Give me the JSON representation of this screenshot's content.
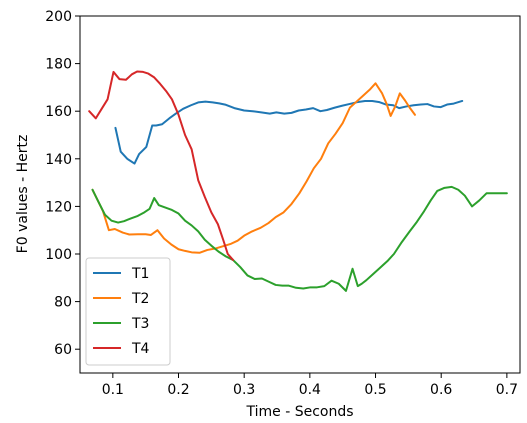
{
  "chart_data": {
    "type": "line",
    "title": "",
    "xlabel": "Time - Seconds",
    "ylabel": "F0 values - Hertz",
    "xlim": [
      0.05,
      0.72
    ],
    "ylim": [
      50,
      200
    ],
    "xticks": [
      0.1,
      0.2,
      0.3,
      0.4,
      0.5,
      0.6,
      0.7
    ],
    "yticks": [
      60,
      80,
      100,
      120,
      140,
      160,
      180,
      200
    ],
    "xtick_labels": [
      "0.1",
      "0.2",
      "0.3",
      "0.4",
      "0.5",
      "0.6",
      "0.7"
    ],
    "ytick_labels": [
      "60",
      "80",
      "100",
      "120",
      "140",
      "160",
      "180",
      "200"
    ],
    "grid": false,
    "legend_position": "bottom-left",
    "series": [
      {
        "name": "T1",
        "color": "#1f77b4",
        "x": [
          0.104,
          0.112,
          0.122,
          0.133,
          0.14,
          0.151,
          0.16,
          0.166,
          0.175,
          0.186,
          0.196,
          0.207,
          0.219,
          0.23,
          0.241,
          0.252,
          0.262,
          0.272,
          0.285,
          0.3,
          0.313,
          0.326,
          0.339,
          0.349,
          0.361,
          0.372,
          0.383,
          0.394,
          0.405,
          0.416,
          0.426,
          0.438,
          0.449,
          0.46,
          0.472,
          0.484,
          0.495,
          0.506,
          0.516,
          0.527,
          0.536,
          0.547,
          0.558,
          0.569,
          0.579,
          0.589,
          0.599,
          0.609,
          0.619,
          0.632
        ],
        "y": [
          153,
          143,
          140,
          138,
          142,
          145,
          154,
          154,
          154.5,
          157,
          159,
          161,
          162.5,
          163.7,
          164,
          163.7,
          163.3,
          162.7,
          161.3,
          160.3,
          160,
          159.5,
          159,
          159.5,
          159,
          159.3,
          160.3,
          160.7,
          161.3,
          160,
          160.5,
          161.5,
          162.3,
          163,
          163.8,
          164.3,
          164.3,
          163.8,
          162.8,
          162.5,
          161.3,
          162,
          162.5,
          162.8,
          163,
          162,
          161.7,
          162.8,
          163.2,
          164.3
        ]
      },
      {
        "name": "T2",
        "color": "#ff7f0e",
        "x": [
          0.069,
          0.085,
          0.094,
          0.103,
          0.115,
          0.125,
          0.138,
          0.15,
          0.158,
          0.168,
          0.178,
          0.189,
          0.2,
          0.21,
          0.22,
          0.232,
          0.244,
          0.256,
          0.268,
          0.28,
          0.29,
          0.3,
          0.312,
          0.325,
          0.337,
          0.348,
          0.36,
          0.372,
          0.384,
          0.395,
          0.406,
          0.417,
          0.428,
          0.439,
          0.45,
          0.461,
          0.471,
          0.481,
          0.491,
          0.5,
          0.51,
          0.517,
          0.523,
          0.53,
          0.537,
          0.545,
          0.552,
          0.56
        ],
        "y": [
          127,
          118,
          110,
          110.5,
          109,
          108.2,
          108.3,
          108.3,
          108,
          110,
          106.5,
          104,
          102,
          101.3,
          100.7,
          100.5,
          101.7,
          102.3,
          103.3,
          104.3,
          105.6,
          107.7,
          109.5,
          111,
          113,
          115.5,
          117.5,
          121,
          125.5,
          130.5,
          136,
          140,
          146.5,
          150.5,
          155,
          161.5,
          164,
          166.5,
          169,
          171.7,
          167.5,
          163,
          158,
          162,
          167.5,
          164.5,
          161.5,
          158.5
        ]
      },
      {
        "name": "T3",
        "color": "#2ca02c",
        "x": [
          0.069,
          0.078,
          0.088,
          0.098,
          0.108,
          0.117,
          0.128,
          0.138,
          0.148,
          0.156,
          0.163,
          0.17,
          0.18,
          0.19,
          0.2,
          0.21,
          0.22,
          0.23,
          0.24,
          0.25,
          0.261,
          0.272,
          0.283,
          0.294,
          0.305,
          0.316,
          0.327,
          0.338,
          0.348,
          0.358,
          0.368,
          0.379,
          0.39,
          0.401,
          0.411,
          0.422,
          0.433,
          0.444,
          0.455,
          0.465,
          0.473,
          0.479,
          0.486,
          0.496,
          0.508,
          0.518,
          0.528,
          0.54,
          0.552,
          0.563,
          0.574,
          0.584,
          0.594,
          0.605,
          0.616,
          0.626,
          0.636,
          0.647,
          0.658,
          0.669,
          0.68,
          0.69,
          0.7
        ],
        "y": [
          127,
          122,
          116.5,
          114,
          113.2,
          113.8,
          115,
          116,
          117.5,
          119,
          123.5,
          120.5,
          119.5,
          118.5,
          117,
          114,
          112,
          109.5,
          106,
          103.5,
          101,
          99,
          97.5,
          94.5,
          91,
          89.5,
          89.7,
          88.3,
          87,
          86.7,
          86.7,
          85.8,
          85.5,
          86,
          86,
          86.5,
          88.8,
          87.5,
          84.5,
          93.8,
          86.5,
          87.5,
          89,
          91.5,
          94.5,
          97,
          100,
          105,
          109.5,
          113.5,
          118,
          122.5,
          126.5,
          127.8,
          128.2,
          127,
          124.5,
          120,
          122.5,
          125.5,
          125.5,
          125.5,
          125.5
        ]
      },
      {
        "name": "T4",
        "color": "#d62728",
        "x": [
          0.064,
          0.074,
          0.083,
          0.092,
          0.101,
          0.11,
          0.12,
          0.129,
          0.137,
          0.146,
          0.154,
          0.163,
          0.172,
          0.181,
          0.19,
          0.2,
          0.21,
          0.22,
          0.23,
          0.24,
          0.25,
          0.26,
          0.268,
          0.275,
          0.283
        ],
        "y": [
          160,
          157,
          161,
          165,
          176.5,
          173.5,
          173.2,
          175.5,
          176.7,
          176.5,
          175.8,
          174.2,
          171.5,
          168.5,
          165,
          158.5,
          150,
          144,
          131,
          124,
          117.5,
          112.5,
          106,
          100,
          97.5
        ]
      }
    ]
  }
}
